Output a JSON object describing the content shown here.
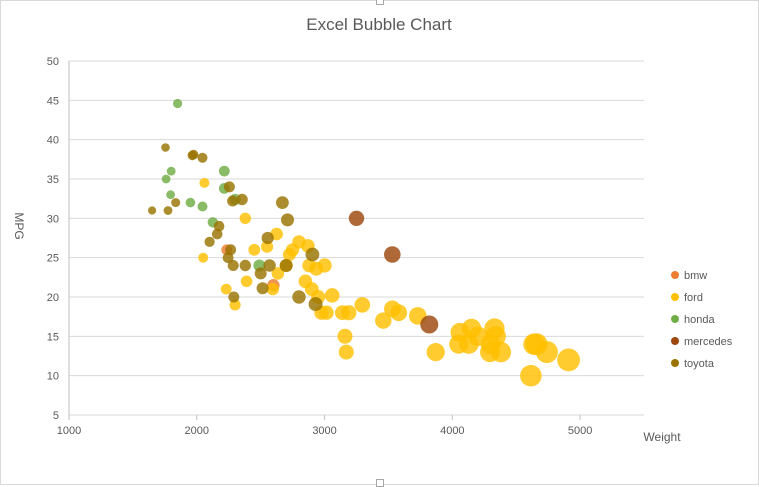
{
  "chart_data": {
    "type": "scatter",
    "bubble": true,
    "title": "Excel Bubble Chart",
    "xlabel": "Weight",
    "ylabel": "MPG",
    "xlim": [
      1000,
      5500
    ],
    "ylim": [
      5,
      50
    ],
    "xticks": [
      1000,
      2000,
      3000,
      4000,
      5000
    ],
    "yticks": [
      5,
      10,
      15,
      20,
      25,
      30,
      35,
      40,
      45,
      50
    ],
    "grid": true,
    "legend_position": "right",
    "bubble_size_note": "bubble size roughly proportional to weight",
    "series": [
      {
        "name": "bmw",
        "color": "#ed7d31",
        "points": [
          [
            2234,
            26
          ],
          [
            2600,
            21.5
          ]
        ]
      },
      {
        "name": "ford",
        "color": "#ffc000",
        "points": [
          [
            2050,
            25
          ],
          [
            2060,
            34.5
          ],
          [
            2230,
            21
          ],
          [
            2300,
            19
          ],
          [
            2380,
            30
          ],
          [
            2390,
            22
          ],
          [
            2450,
            26
          ],
          [
            2550,
            26.4
          ],
          [
            2595,
            21
          ],
          [
            2625,
            28
          ],
          [
            2635,
            23
          ],
          [
            2700,
            24
          ],
          [
            2725,
            25.4
          ],
          [
            2750,
            26
          ],
          [
            2800,
            27
          ],
          [
            2850,
            22
          ],
          [
            2870,
            26.5
          ],
          [
            2880,
            24
          ],
          [
            2900,
            21
          ],
          [
            2935,
            23.6
          ],
          [
            2950,
            20
          ],
          [
            2975,
            18
          ],
          [
            3000,
            24
          ],
          [
            3015,
            18
          ],
          [
            3060,
            20.2
          ],
          [
            3140,
            18
          ],
          [
            3160,
            15
          ],
          [
            3170,
            13
          ],
          [
            3190,
            18
          ],
          [
            3295,
            19
          ],
          [
            3460,
            17
          ],
          [
            3530,
            18.5
          ],
          [
            3580,
            18
          ],
          [
            3730,
            17.6
          ],
          [
            3870,
            13
          ],
          [
            4050,
            14
          ],
          [
            4060,
            15.5
          ],
          [
            4130,
            14
          ],
          [
            4150,
            16
          ],
          [
            4200,
            15
          ],
          [
            4295,
            13
          ],
          [
            4300,
            14
          ],
          [
            4330,
            16
          ],
          [
            4340,
            15
          ],
          [
            4380,
            13
          ],
          [
            4615,
            10
          ],
          [
            4640,
            14
          ],
          [
            4660,
            14
          ],
          [
            4740,
            13
          ],
          [
            4910,
            12
          ]
        ]
      },
      {
        "name": "honda",
        "color": "#70ad47",
        "points": [
          [
            1760,
            35
          ],
          [
            1800,
            36
          ],
          [
            1795,
            33
          ],
          [
            1850,
            44.6
          ],
          [
            1950,
            32
          ],
          [
            2045,
            31.5
          ],
          [
            2125,
            29.5
          ],
          [
            2215,
            33.8
          ],
          [
            2215,
            36
          ],
          [
            2300,
            32.4
          ],
          [
            2490,
            24
          ]
        ]
      },
      {
        "name": "mercedes",
        "color": "#9e480e",
        "points": [
          [
            3250,
            30
          ],
          [
            3530,
            25.4
          ],
          [
            3820,
            16.5
          ]
        ]
      },
      {
        "name": "toyota",
        "color": "#997300",
        "points": [
          [
            1650,
            31
          ],
          [
            1755,
            39
          ],
          [
            1775,
            31
          ],
          [
            1835,
            32
          ],
          [
            1965,
            38
          ],
          [
            1975,
            38.1
          ],
          [
            2045,
            37.7
          ],
          [
            2100,
            27
          ],
          [
            2160,
            28
          ],
          [
            2175,
            29
          ],
          [
            2245,
            25
          ],
          [
            2255,
            34
          ],
          [
            2265,
            26
          ],
          [
            2280,
            32.2
          ],
          [
            2285,
            24
          ],
          [
            2290,
            20
          ],
          [
            2355,
            32.4
          ],
          [
            2380,
            24
          ],
          [
            2500,
            23
          ],
          [
            2515,
            21.1
          ],
          [
            2555,
            27.5
          ],
          [
            2570,
            24
          ],
          [
            2670,
            32
          ],
          [
            2700,
            24
          ],
          [
            2710,
            29.8
          ],
          [
            2800,
            20
          ],
          [
            2905,
            25.4
          ],
          [
            2930,
            19.1
          ]
        ]
      }
    ]
  }
}
